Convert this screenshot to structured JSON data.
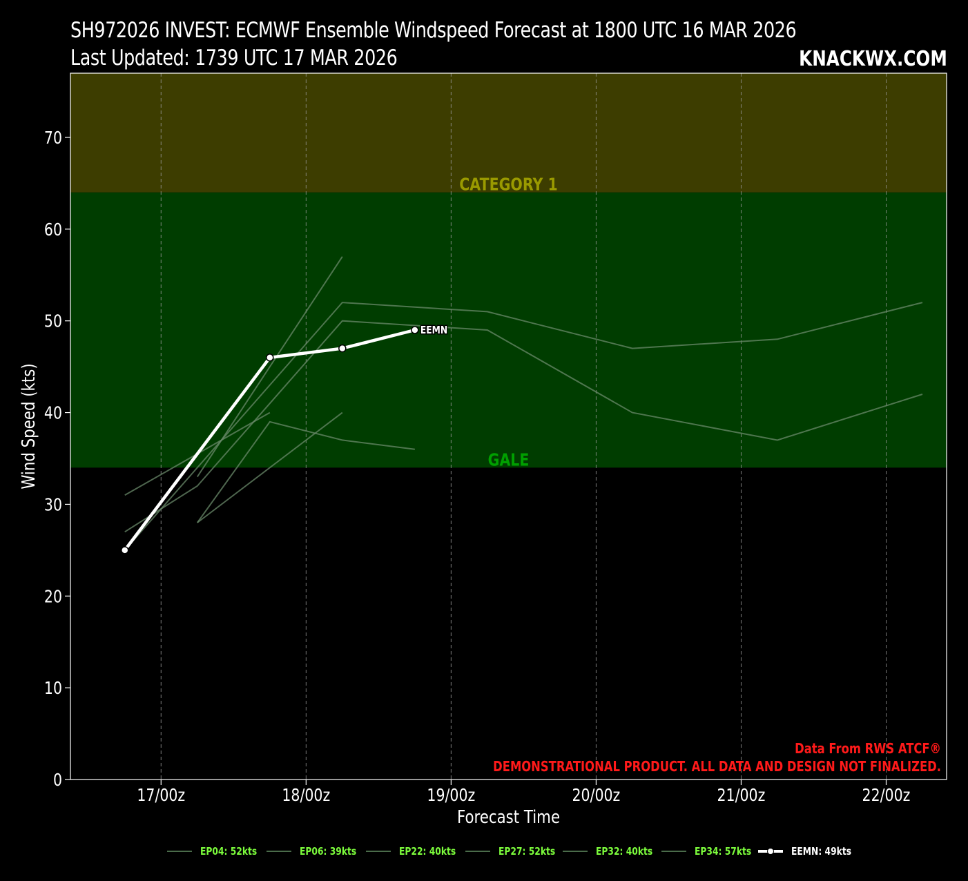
{
  "header": {
    "title": "SH972026 INVEST: ECMWF Ensemble Windspeed Forecast at 1800 UTC 16 MAR 2026",
    "subtitle": "Last Updated: 1739 UTC 17 MAR 2026",
    "brand": "KNACKWX.COM"
  },
  "colors": {
    "category1_band": "#3d3d00",
    "gale_band": "#003d00",
    "category1_label": "#9a9a00",
    "gale_label": "#00a000",
    "member_line": "#6a8a6a",
    "mean_line": "#ffffff",
    "legend_text": "#7cfc3c",
    "credit_text": "#ff1a1a"
  },
  "chart_data": {
    "type": "line",
    "xlabel": "Forecast Time",
    "ylabel": "Wind Speed (kts)",
    "ylim": [
      0,
      77
    ],
    "xlim_hours": [
      -9,
      136
    ],
    "x_ticks": [
      {
        "hour": 6,
        "label": "17/00z"
      },
      {
        "hour": 30,
        "label": "18/00z"
      },
      {
        "hour": 54,
        "label": "19/00z"
      },
      {
        "hour": 78,
        "label": "20/00z"
      },
      {
        "hour": 102,
        "label": "21/00z"
      },
      {
        "hour": 126,
        "label": "22/00z"
      }
    ],
    "y_ticks": [
      0,
      10,
      20,
      30,
      40,
      50,
      60,
      70
    ],
    "grid": "vertical dashed",
    "bands": [
      {
        "name": "CATEGORY 1",
        "from": 64,
        "to": 77
      },
      {
        "name": "GALE",
        "from": 34,
        "to": 64
      }
    ],
    "series": [
      {
        "name": "EP04",
        "legend": "EP04: 52kts",
        "x": [
          0,
          12,
          24,
          36,
          48,
          60,
          72,
          84,
          96,
          108,
          120,
          132
        ],
        "y": [
          25,
          null,
          null,
          52,
          null,
          51,
          null,
          47,
          null,
          48,
          null,
          52
        ]
      },
      {
        "name": "EP06",
        "legend": "EP06: 39kts",
        "x": [
          12,
          24,
          36,
          48
        ],
        "y": [
          28,
          39,
          37,
          36
        ]
      },
      {
        "name": "EP22",
        "legend": "EP22: 40kts",
        "x": [
          12,
          36
        ],
        "y": [
          28,
          40
        ]
      },
      {
        "name": "EP27",
        "legend": "EP27: 52kts",
        "x": [
          0,
          12,
          36,
          60,
          84,
          108,
          132
        ],
        "y": [
          27,
          32,
          50,
          49,
          40,
          37,
          42
        ]
      },
      {
        "name": "EP32",
        "legend": "EP32: 40kts",
        "x": [
          0,
          24
        ],
        "y": [
          31,
          40
        ]
      },
      {
        "name": "EP34",
        "legend": "EP34: 57kts",
        "x": [
          12,
          36
        ],
        "y": [
          33,
          57
        ]
      },
      {
        "name": "EEMN",
        "legend": "EEMN: 49kts",
        "x": [
          0,
          24,
          36,
          48
        ],
        "y": [
          25,
          46,
          47,
          49
        ],
        "label": "EEMN"
      }
    ],
    "credit": "Data From RWS ATCF®",
    "disclaimer": "DEMONSTRATIONAL PRODUCT. ALL DATA AND DESIGN NOT FINALIZED."
  }
}
